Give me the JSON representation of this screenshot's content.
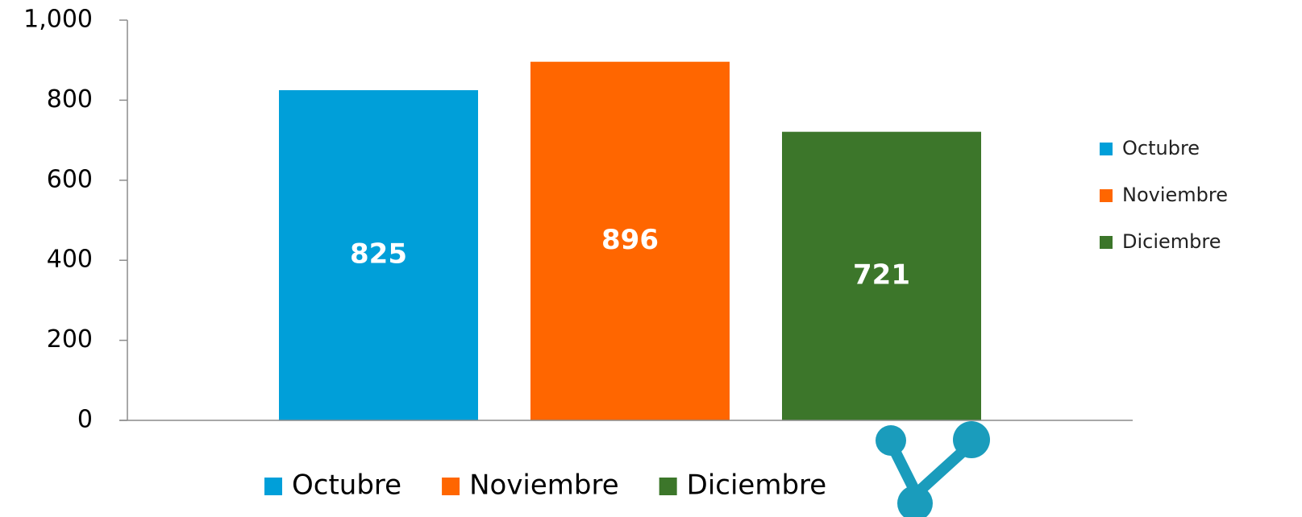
{
  "chart_data": {
    "type": "bar",
    "categories": [
      null
    ],
    "series": [
      {
        "name": "Octubre",
        "color": "#009fd9",
        "values": [
          825
        ]
      },
      {
        "name": "Noviembre",
        "color": "#ff6600",
        "values": [
          896
        ]
      },
      {
        "name": "Diciembre",
        "color": "#3c762a",
        "values": [
          721
        ]
      }
    ],
    "ylim": [
      0,
      1000
    ],
    "yticks": [
      0,
      200,
      400,
      600,
      {
        "value": 1000,
        "label": "1,000"
      },
      800
    ],
    "legend": [
      "right",
      "bottom"
    ],
    "grid": false
  }
}
